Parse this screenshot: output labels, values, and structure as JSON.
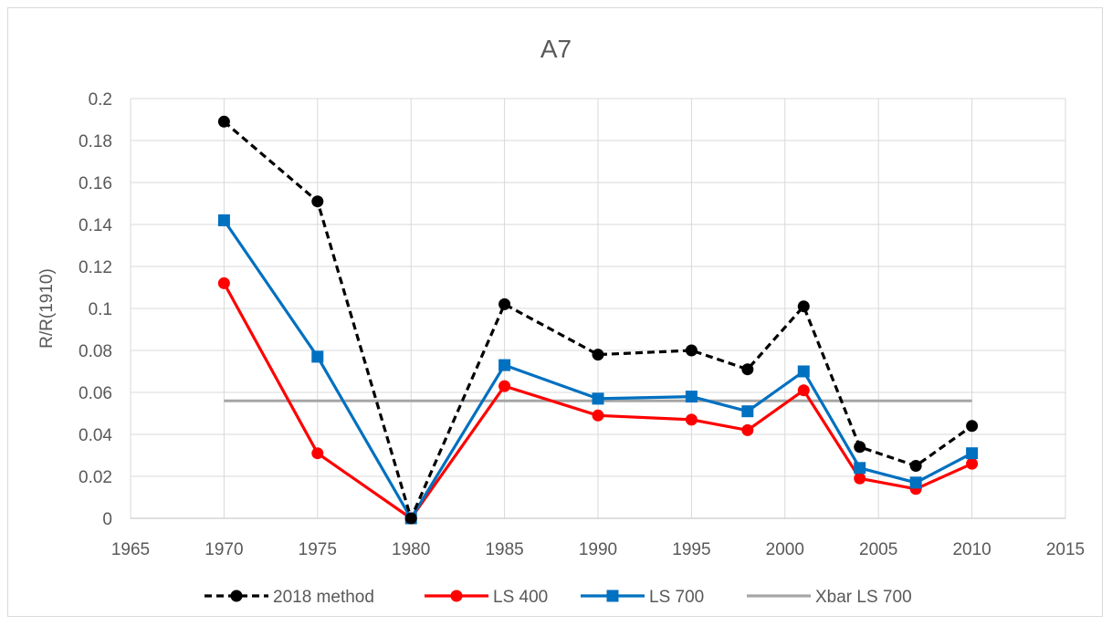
{
  "chart_data": {
    "type": "line",
    "title": "A7",
    "xlabel": "",
    "ylabel": "R/R(1910)",
    "xlim": [
      1965,
      2015
    ],
    "ylim": [
      0,
      0.2
    ],
    "xticks": [
      "1965",
      "1970",
      "1975",
      "1980",
      "1985",
      "1990",
      "1995",
      "2000",
      "2005",
      "2010",
      "2015"
    ],
    "yticks": [
      "0",
      "0.02",
      "0.04",
      "0.06",
      "0.08",
      "0.1",
      "0.12",
      "0.14",
      "0.16",
      "0.18",
      "0.2"
    ],
    "grid": true,
    "legend_position": "bottom",
    "series": [
      {
        "name": "2018 method",
        "color": "#000000",
        "dash": "dashed",
        "marker": "circle",
        "x": [
          1970,
          1975,
          1980,
          1985,
          1990,
          1995,
          1998,
          2001,
          2004,
          2007,
          2010
        ],
        "y": [
          0.189,
          0.151,
          0.0,
          0.102,
          0.078,
          0.08,
          0.071,
          0.101,
          0.034,
          0.025,
          0.044
        ]
      },
      {
        "name": "LS 400",
        "color": "#ff0000",
        "dash": "solid",
        "marker": "circle",
        "x": [
          1970,
          1975,
          1980,
          1985,
          1990,
          1995,
          1998,
          2001,
          2004,
          2007,
          2010
        ],
        "y": [
          0.112,
          0.031,
          0.0,
          0.063,
          0.049,
          0.047,
          0.042,
          0.061,
          0.019,
          0.014,
          0.026
        ]
      },
      {
        "name": "LS 700",
        "color": "#0070c0",
        "dash": "solid",
        "marker": "square",
        "x": [
          1970,
          1975,
          1980,
          1985,
          1990,
          1995,
          1998,
          2001,
          2004,
          2007,
          2010
        ],
        "y": [
          0.142,
          0.077,
          0.0,
          0.073,
          0.057,
          0.058,
          0.051,
          0.07,
          0.024,
          0.017,
          0.031
        ]
      },
      {
        "name": "Xbar LS 700",
        "color": "#a6a6a6",
        "dash": "solid",
        "marker": "none",
        "x": [
          1970,
          2010
        ],
        "y": [
          0.056,
          0.056
        ]
      }
    ]
  }
}
